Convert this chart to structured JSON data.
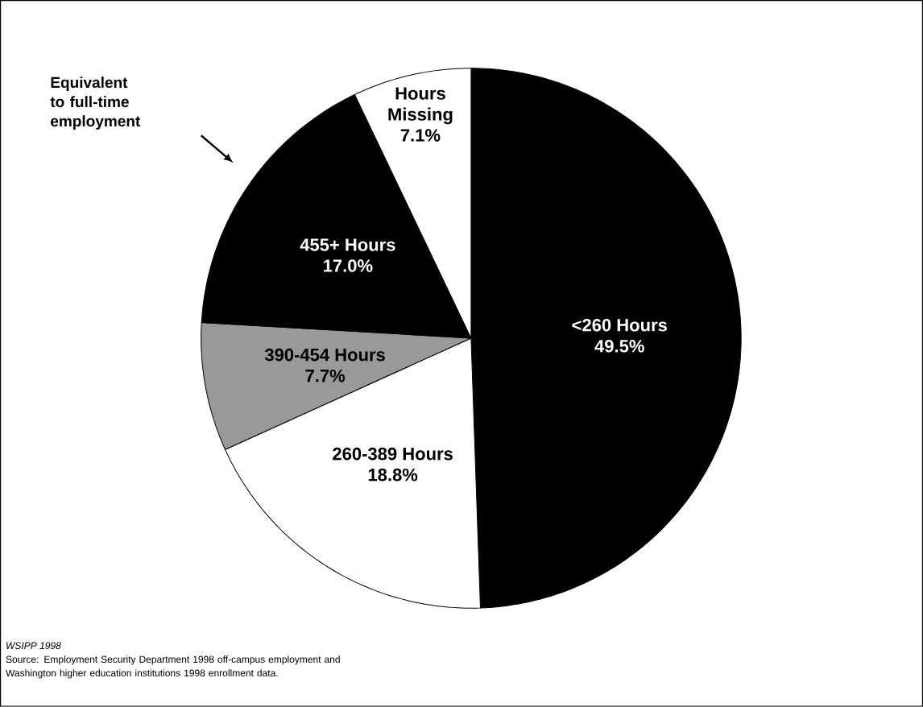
{
  "chart_data": {
    "type": "pie",
    "categories": [
      "<260 Hours",
      "260-389 Hours",
      "390-454 Hours",
      "455+ Hours",
      "Hours Missing"
    ],
    "values": [
      49.5,
      18.8,
      7.7,
      17.0,
      7.1
    ],
    "value_labels": [
      "49.5%",
      "18.8%",
      "7.7%",
      "17.0%",
      "7.1%"
    ],
    "colors": [
      "#000000",
      "#ffffff",
      "#999999",
      "#000000",
      "#ffffff"
    ],
    "annotations": [
      "Equivalent to full-time employment",
      "WSIPP 1998",
      "Source:  Employment Security Department 1998 off-campus employment and Washington higher education institutions 1998 enrollment data."
    ]
  }
}
